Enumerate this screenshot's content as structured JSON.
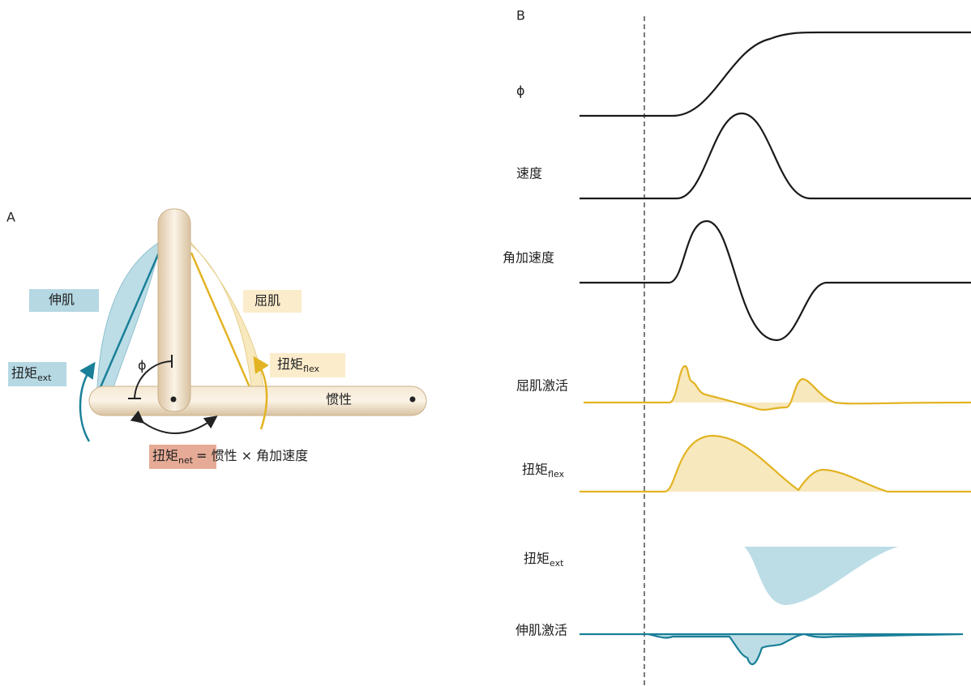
{
  "panel_a": {
    "label": "A",
    "extensor": "伸肌",
    "flexor": "屈肌",
    "torque_ext": {
      "base": "扭矩",
      "sub": "ext"
    },
    "torque_flex": {
      "base": "扭矩",
      "sub": "flex"
    },
    "phi": "ϕ",
    "inertia": "惯性",
    "equation": {
      "lhs_base": "扭矩",
      "lhs_sub": "net",
      "rhs": "= 惯性 × 角加速度"
    }
  },
  "panel_b": {
    "label": "B",
    "traces": [
      {
        "label": "ϕ"
      },
      {
        "label": "速度"
      },
      {
        "label": "角加速度"
      },
      {
        "label": "屈肌激活"
      },
      {
        "base": "扭矩",
        "sub": "flex"
      },
      {
        "base": "扭矩",
        "sub": "ext"
      },
      {
        "label": "伸肌激活"
      }
    ]
  }
}
